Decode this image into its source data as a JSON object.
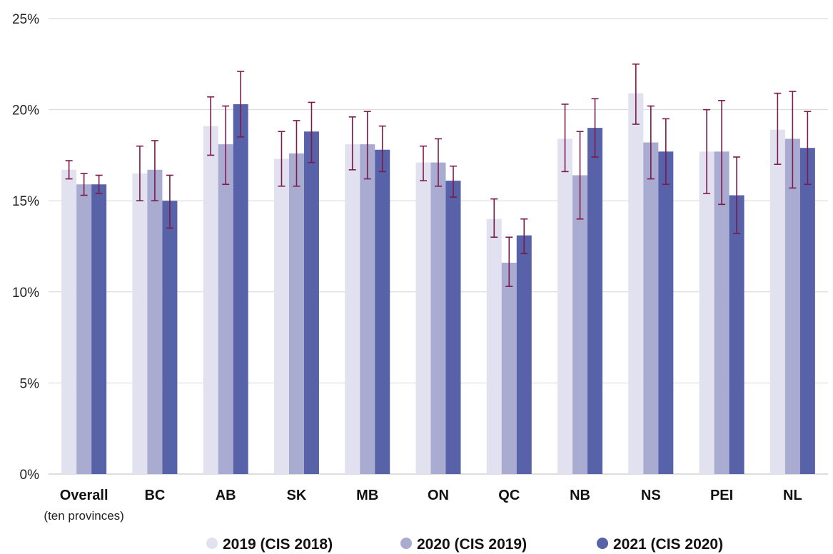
{
  "chart_data": {
    "type": "bar",
    "title": "",
    "xlabel": "",
    "ylabel": "",
    "ylim": [
      0,
      25
    ],
    "y_ticks": [
      "0%",
      "5%",
      "10%",
      "15%",
      "20%",
      "25%"
    ],
    "y_tick_values": [
      0,
      5,
      10,
      15,
      20,
      25
    ],
    "grid": true,
    "legend_position": "bottom",
    "categories": [
      "Overall",
      "BC",
      "AB",
      "SK",
      "MB",
      "ON",
      "QC",
      "NB",
      "NS",
      "PEI",
      "NL"
    ],
    "category_sublabels": [
      "(ten provinces)",
      "",
      "",
      "",
      "",
      "",
      "",
      "",
      "",
      "",
      ""
    ],
    "series": [
      {
        "name": "2019 (CIS 2018)",
        "color": "#e1e1ef",
        "values": [
          16.7,
          16.5,
          19.1,
          17.3,
          18.1,
          17.1,
          14.0,
          18.4,
          20.9,
          17.7,
          18.9
        ],
        "error_low": [
          16.2,
          15.0,
          17.5,
          15.8,
          16.7,
          16.1,
          13.0,
          16.6,
          19.2,
          15.4,
          17.0
        ],
        "error_high": [
          17.2,
          18.0,
          20.7,
          18.8,
          19.6,
          18.0,
          15.1,
          20.3,
          22.5,
          20.0,
          20.9
        ]
      },
      {
        "name": "2020 (CIS 2019)",
        "color": "#a9abd0",
        "values": [
          15.9,
          16.7,
          18.1,
          17.6,
          18.1,
          17.1,
          11.6,
          16.4,
          18.2,
          17.7,
          18.4
        ],
        "error_low": [
          15.3,
          15.0,
          15.9,
          15.8,
          16.2,
          15.8,
          10.3,
          14.0,
          16.2,
          14.8,
          15.7
        ],
        "error_high": [
          16.5,
          18.3,
          20.2,
          19.4,
          19.9,
          18.4,
          13.0,
          18.8,
          20.2,
          20.5,
          21.0
        ]
      },
      {
        "name": "2021 (CIS 2020)",
        "color": "#5762a9",
        "values": [
          15.9,
          15.0,
          20.3,
          18.8,
          17.8,
          16.1,
          13.1,
          19.0,
          17.7,
          15.3,
          17.9
        ],
        "error_low": [
          15.4,
          13.5,
          18.5,
          17.1,
          16.6,
          15.2,
          12.1,
          17.4,
          15.9,
          13.2,
          15.9
        ],
        "error_high": [
          16.4,
          16.4,
          22.1,
          20.4,
          19.1,
          16.9,
          14.0,
          20.6,
          19.5,
          17.4,
          19.9
        ]
      }
    ],
    "error_bar_color": "#7b1a4b"
  }
}
